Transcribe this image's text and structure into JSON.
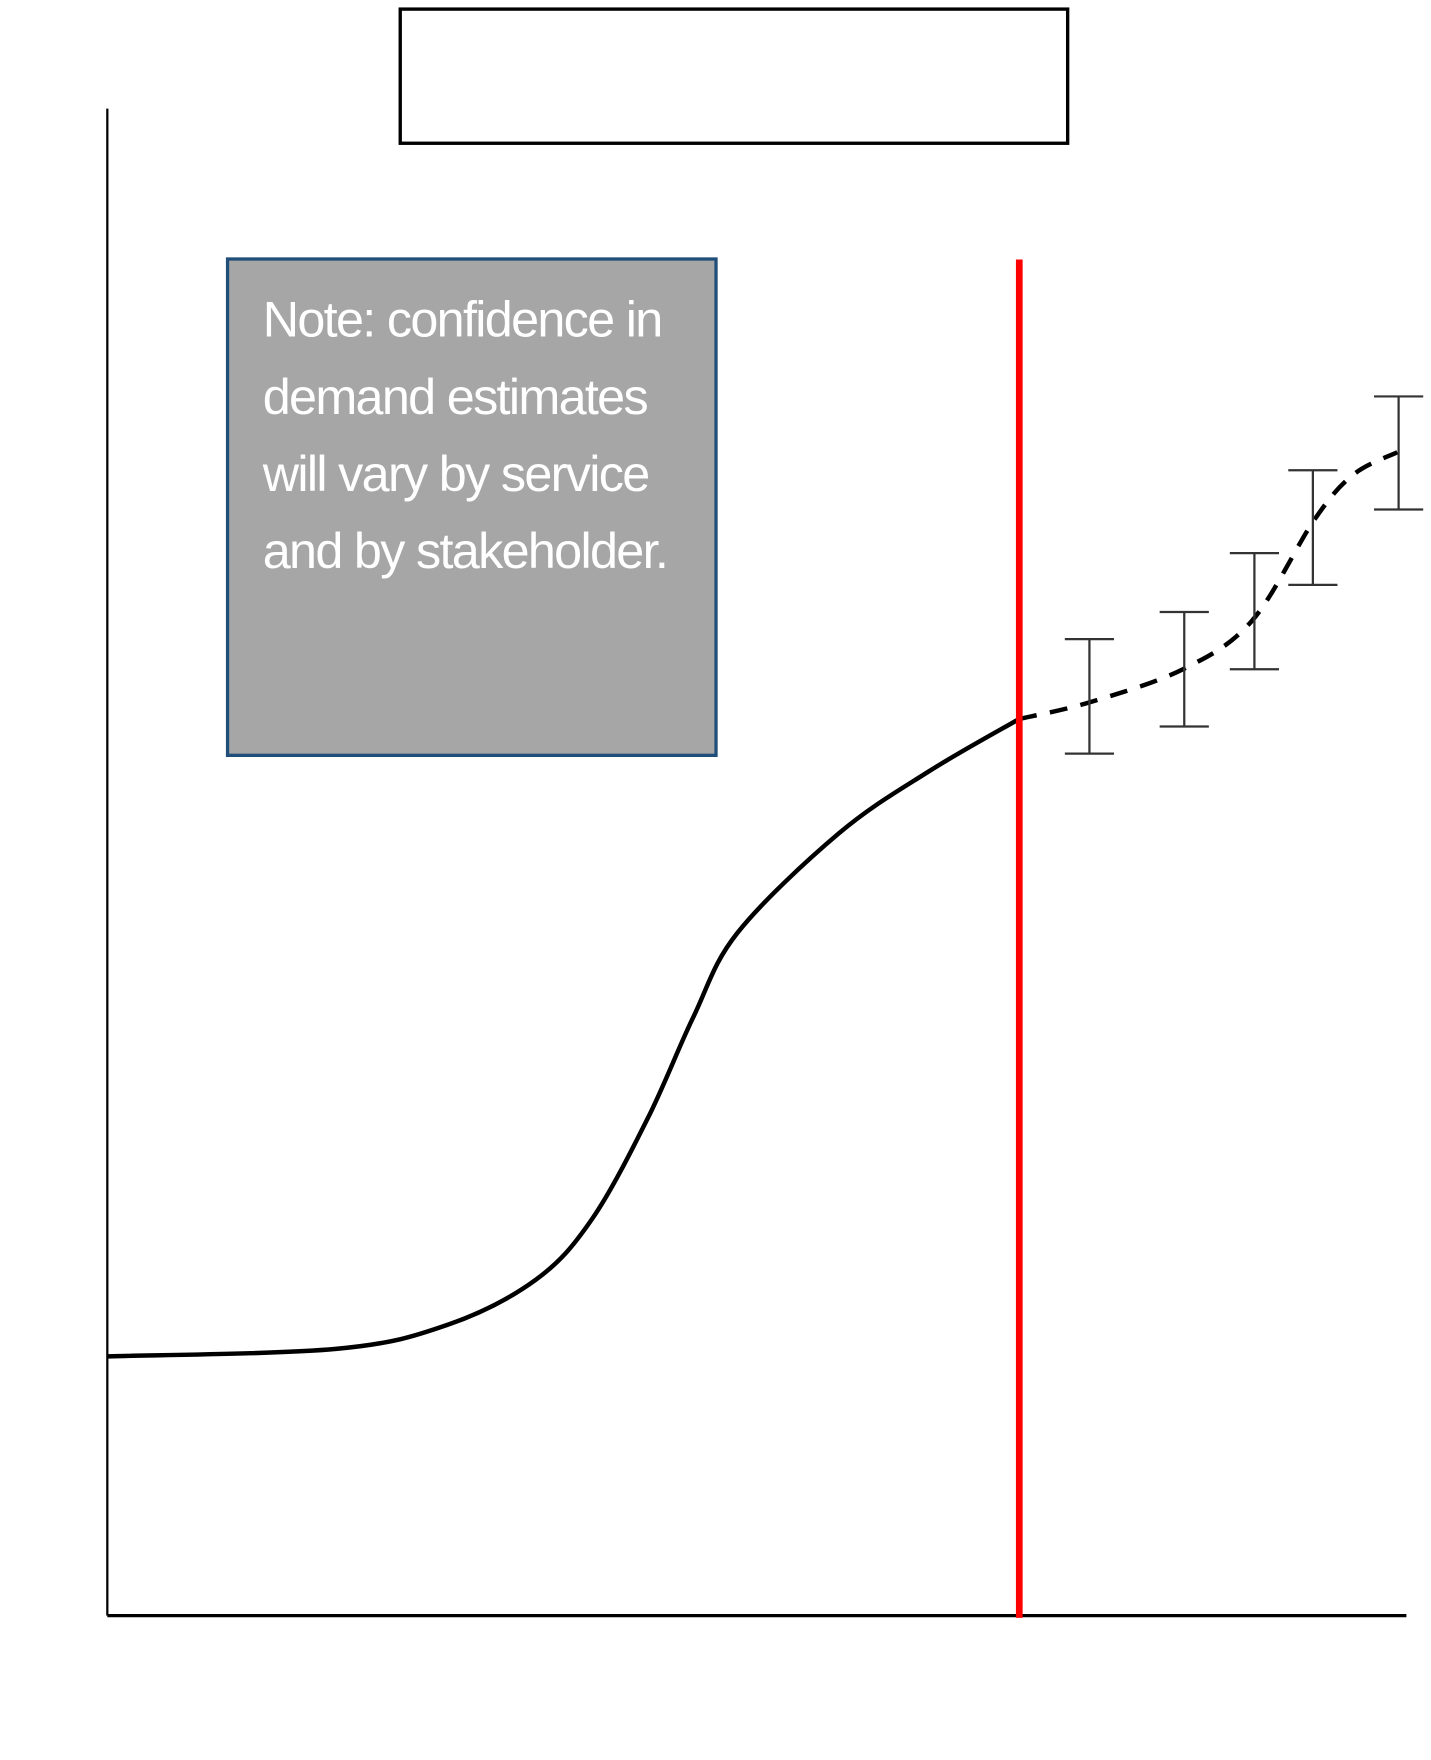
{
  "chart_data": {
    "type": "line",
    "title": "",
    "xlabel": "",
    "ylabel": "",
    "xlim": [
      0,
      100
    ],
    "ylim": [
      0,
      100
    ],
    "grid": false,
    "annotation": "Note: confidence in demand estimates will vary by service and by stakeholder.",
    "cutoff_x": 70.2,
    "colors": {
      "line": "#000000",
      "cutoff": "#ff0000",
      "note_fill": "#a6a6a6",
      "note_border": "#1f4e79",
      "error_bar": "#333333"
    },
    "series": [
      {
        "style": "solid",
        "x": [
          0,
          17.6,
          26.2,
          33.0,
          37.3,
          41.6,
          45.1,
          48.5,
          56.3,
          63.2,
          70.2
        ],
        "y": [
          17.2,
          17.7,
          19.3,
          22.3,
          26.3,
          33.0,
          39.7,
          45.3,
          51.9,
          56.0,
          59.5
        ]
      },
      {
        "style": "dashed",
        "x": [
          70.2,
          75.6,
          82.8,
          88.1,
          92.9,
          95.9,
          99.3
        ],
        "y": [
          59.5,
          60.6,
          62.8,
          66.0,
          72.7,
          75.7,
          77.2
        ]
      }
    ],
    "error_bars": [
      {
        "x": 75.6,
        "low": 57.2,
        "high": 64.8
      },
      {
        "x": 82.9,
        "low": 59.0,
        "high": 66.6
      },
      {
        "x": 88.3,
        "low": 62.8,
        "high": 70.5
      },
      {
        "x": 92.8,
        "low": 68.4,
        "high": 76.0
      },
      {
        "x": 99.4,
        "low": 73.4,
        "high": 80.9
      }
    ]
  }
}
